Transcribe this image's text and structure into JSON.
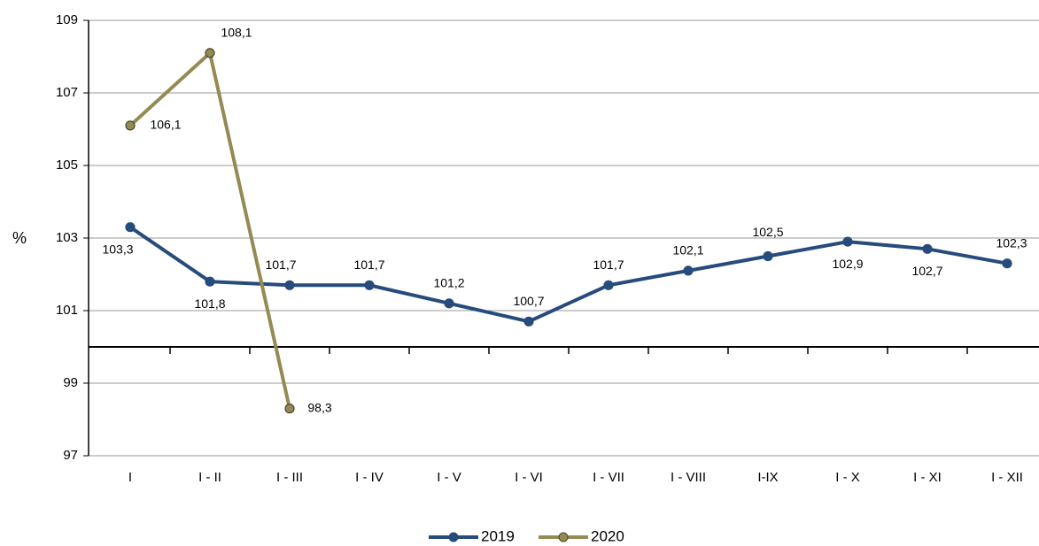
{
  "chart_data": {
    "type": "line",
    "y_label": "%",
    "categories": [
      "I",
      "I - II",
      "I - III",
      "I - IV",
      "I - V",
      "I - VI",
      "I - VII",
      "I - VIII",
      "I-IX",
      "I - X",
      "I - XI",
      "I - XII"
    ],
    "series": [
      {
        "name": "2019",
        "color": "#264b7d",
        "values": [
          103.3,
          101.8,
          101.7,
          101.7,
          101.2,
          100.7,
          101.7,
          102.1,
          102.5,
          102.9,
          102.7,
          102.3
        ],
        "value_labels": [
          "103,3",
          "101,8",
          "101,7",
          "101,7",
          "101,2",
          "100,7",
          "101,7",
          "102,1",
          "102,5",
          "102,9",
          "102,7",
          "102,3"
        ]
      },
      {
        "name": "2020",
        "color": "#948a54",
        "values": [
          106.1,
          108.1,
          98.3,
          null,
          null,
          null,
          null,
          null,
          null,
          null,
          null,
          null
        ],
        "value_labels": [
          "106,1",
          "108,1",
          "98,3",
          null,
          null,
          null,
          null,
          null,
          null,
          null,
          null,
          null
        ]
      }
    ],
    "ylim": [
      97,
      109
    ],
    "yticks": [
      97,
      99,
      101,
      103,
      105,
      107,
      109
    ],
    "x_axis_at": 100,
    "grid": true,
    "legend": "bottom"
  }
}
